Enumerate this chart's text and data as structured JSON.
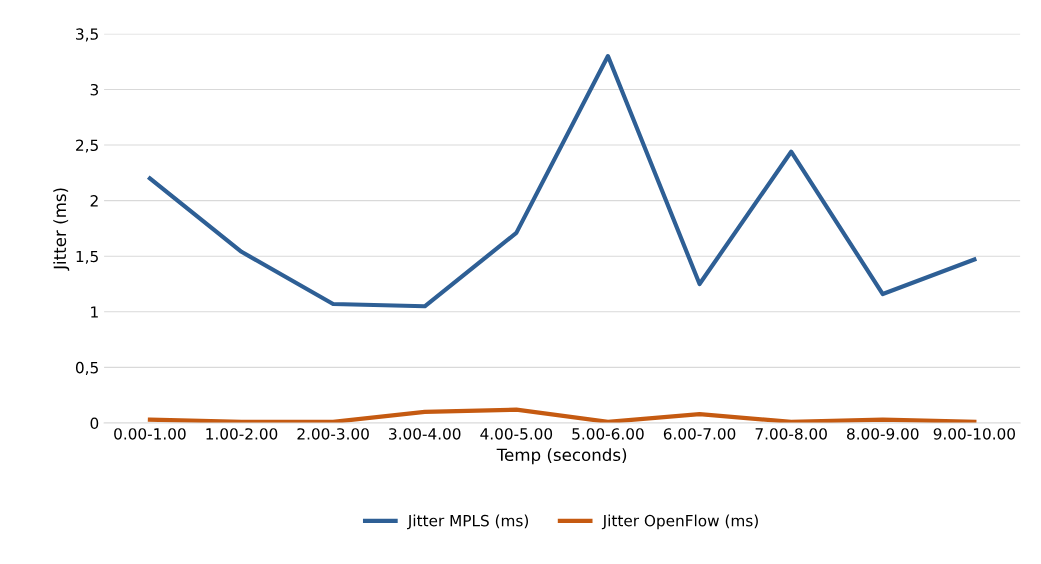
{
  "chart_data": {
    "type": "line",
    "xlabel": "Temp (seconds)",
    "ylabel": "Jitter (ms)",
    "categories": [
      "0.00-1.00",
      "1.00-2.00",
      "2.00-3.00",
      "3.00-4.00",
      "4.00-5.00",
      "5.00-6.00",
      "6.00-7.00",
      "7.00-8.00",
      "8.00-9.00",
      "9.00-10.00"
    ],
    "series": [
      {
        "name": "Jitter MPLS (ms)",
        "color": "#2e5f95",
        "values": [
          2.2,
          1.54,
          1.07,
          1.05,
          1.71,
          3.3,
          1.25,
          2.44,
          1.16,
          1.47
        ]
      },
      {
        "name": "Jitter OpenFlow (ms)",
        "color": "#c55a11",
        "values": [
          0.03,
          0.01,
          0.01,
          0.1,
          0.12,
          0.01,
          0.08,
          0.01,
          0.03,
          0.01
        ]
      }
    ],
    "ylim": [
      0,
      3.5
    ],
    "yticks": [
      0,
      {
        "value": 0.5,
        "label": "0,5"
      },
      1,
      {
        "value": 1.5,
        "label": "1,5"
      },
      2,
      {
        "value": 2.5,
        "label": "2,5"
      },
      3,
      {
        "value": 3.5,
        "label": "3,5"
      }
    ],
    "grid": "y",
    "legend": "bottom",
    "marker": "none",
    "line_style": "solid"
  }
}
